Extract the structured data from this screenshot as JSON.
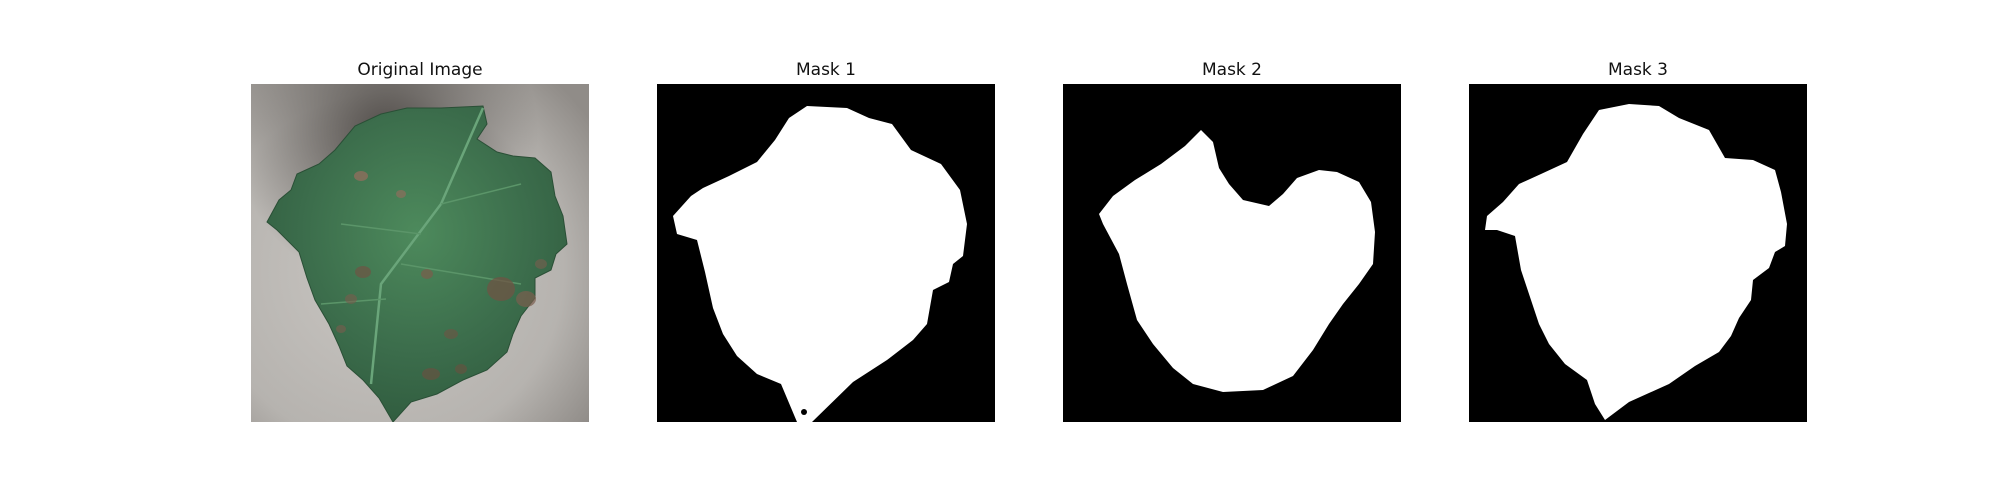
{
  "figure": {
    "panels": [
      {
        "title": "Original Image",
        "content": "leaf-photo"
      },
      {
        "title": "Mask 1",
        "content": "binary-mask"
      },
      {
        "title": "Mask 2",
        "content": "binary-mask"
      },
      {
        "title": "Mask 3",
        "content": "binary-mask"
      }
    ]
  },
  "colors": {
    "mask_background": "#000000",
    "mask_foreground": "#ffffff",
    "leaf_green": "#3f6e4d",
    "background_gray": "#b5b2ae"
  }
}
